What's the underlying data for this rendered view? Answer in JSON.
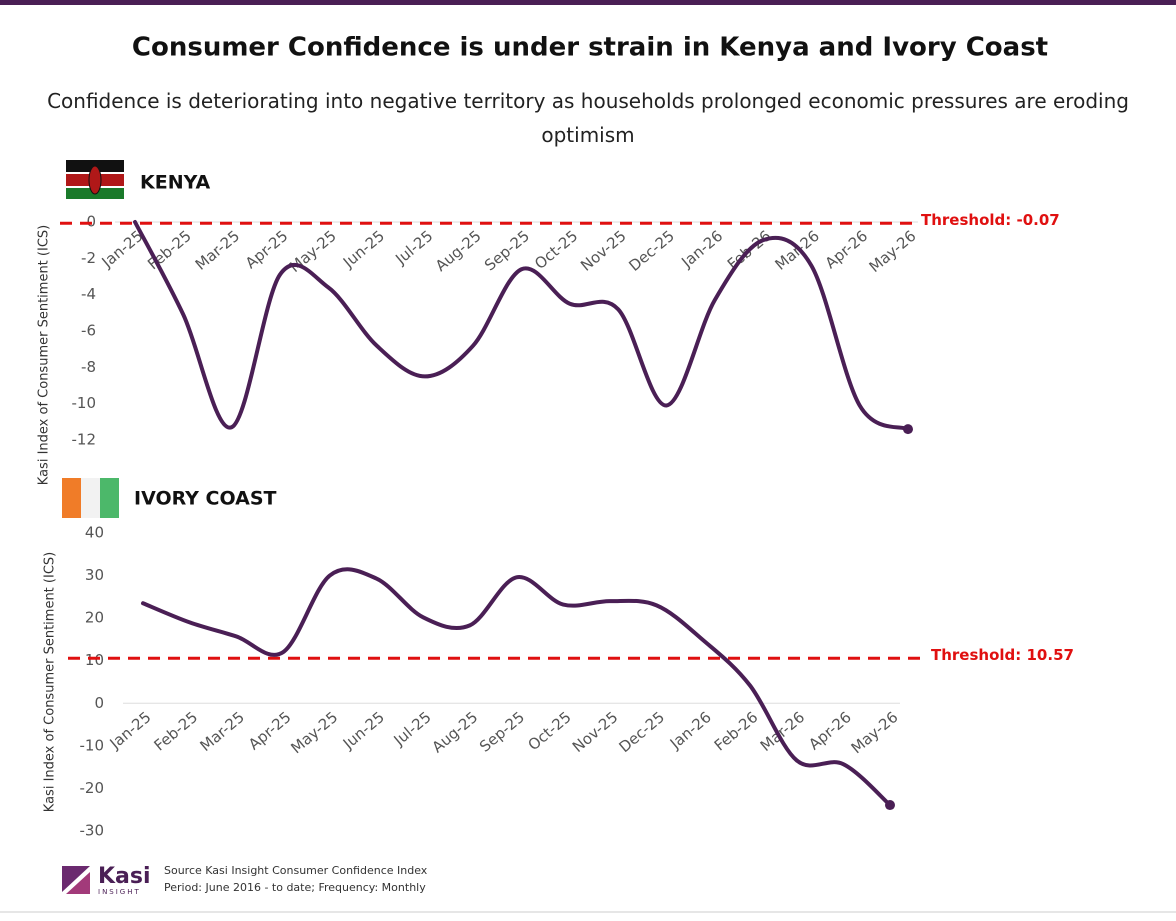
{
  "header": {
    "title": "Consumer Confidence is under strain in Kenya and Ivory Coast",
    "subtitle": "Confidence is deteriorating into negative territory as households prolonged economic pressures are eroding optimism"
  },
  "chart_data": [
    {
      "type": "line",
      "title": "KENYA",
      "ylabel": "Kasi Index of Consumer Sentiment (ICS)",
      "categories": [
        "Jan-25",
        "Feb-25",
        "Mar-25",
        "Apr-25",
        "May-25",
        "Jun-25",
        "Jul-25",
        "Aug-25",
        "Sep-25",
        "Oct-25",
        "Nov-25",
        "Dec-25",
        "Jan-26",
        "Feb-26",
        "Mar-26",
        "Apr-26",
        "May-26"
      ],
      "values": [
        0,
        -5.1,
        -11.3,
        -2.9,
        -3.6,
        -6.8,
        -8.5,
        -6.8,
        -2.6,
        -4.5,
        -4.8,
        -10.1,
        -4.3,
        -1.0,
        -2.4,
        -10.1,
        -11.4
      ],
      "color": "#4a1f55",
      "threshold": {
        "value": -0.07,
        "label": "Threshold: -0.07"
      },
      "threshold_color": "#e01010",
      "ylim": [
        -12,
        0
      ],
      "yticks": [
        0,
        -2,
        -4,
        -6,
        -8,
        -10,
        -12
      ]
    },
    {
      "type": "line",
      "title": "IVORY COAST",
      "ylabel": "Kasi Index of Consumer Sentiment (ICS)",
      "categories": [
        "Jan-25",
        "Feb-25",
        "Mar-25",
        "Apr-25",
        "May-25",
        "Jun-25",
        "Jul-25",
        "Aug-25",
        "Sep-25",
        "Oct-25",
        "Nov-25",
        "Dec-25",
        "Jan-26",
        "Feb-26",
        "Mar-26",
        "Apr-26",
        "May-26"
      ],
      "values": [
        23.5,
        19,
        15.7,
        12,
        30,
        29.3,
        20.2,
        18.3,
        29.6,
        23.2,
        24,
        23,
        14.8,
        4.2,
        -13.4,
        -14.3,
        -23.9
      ],
      "color": "#4a1f55",
      "threshold": {
        "value": 10.57,
        "label": "Threshold: 10.57"
      },
      "threshold_color": "#e01010",
      "ylim": [
        -30,
        40
      ],
      "yticks": [
        40,
        30,
        20,
        10,
        0,
        -10,
        -20,
        -30
      ]
    }
  ],
  "footer": {
    "logo": "Kasi",
    "logo_sub": "INSIGHT",
    "source": "Source Kasi Insight Consumer Confidence Index",
    "period": "Period: June 2016 - to date; Frequency: Monthly"
  }
}
